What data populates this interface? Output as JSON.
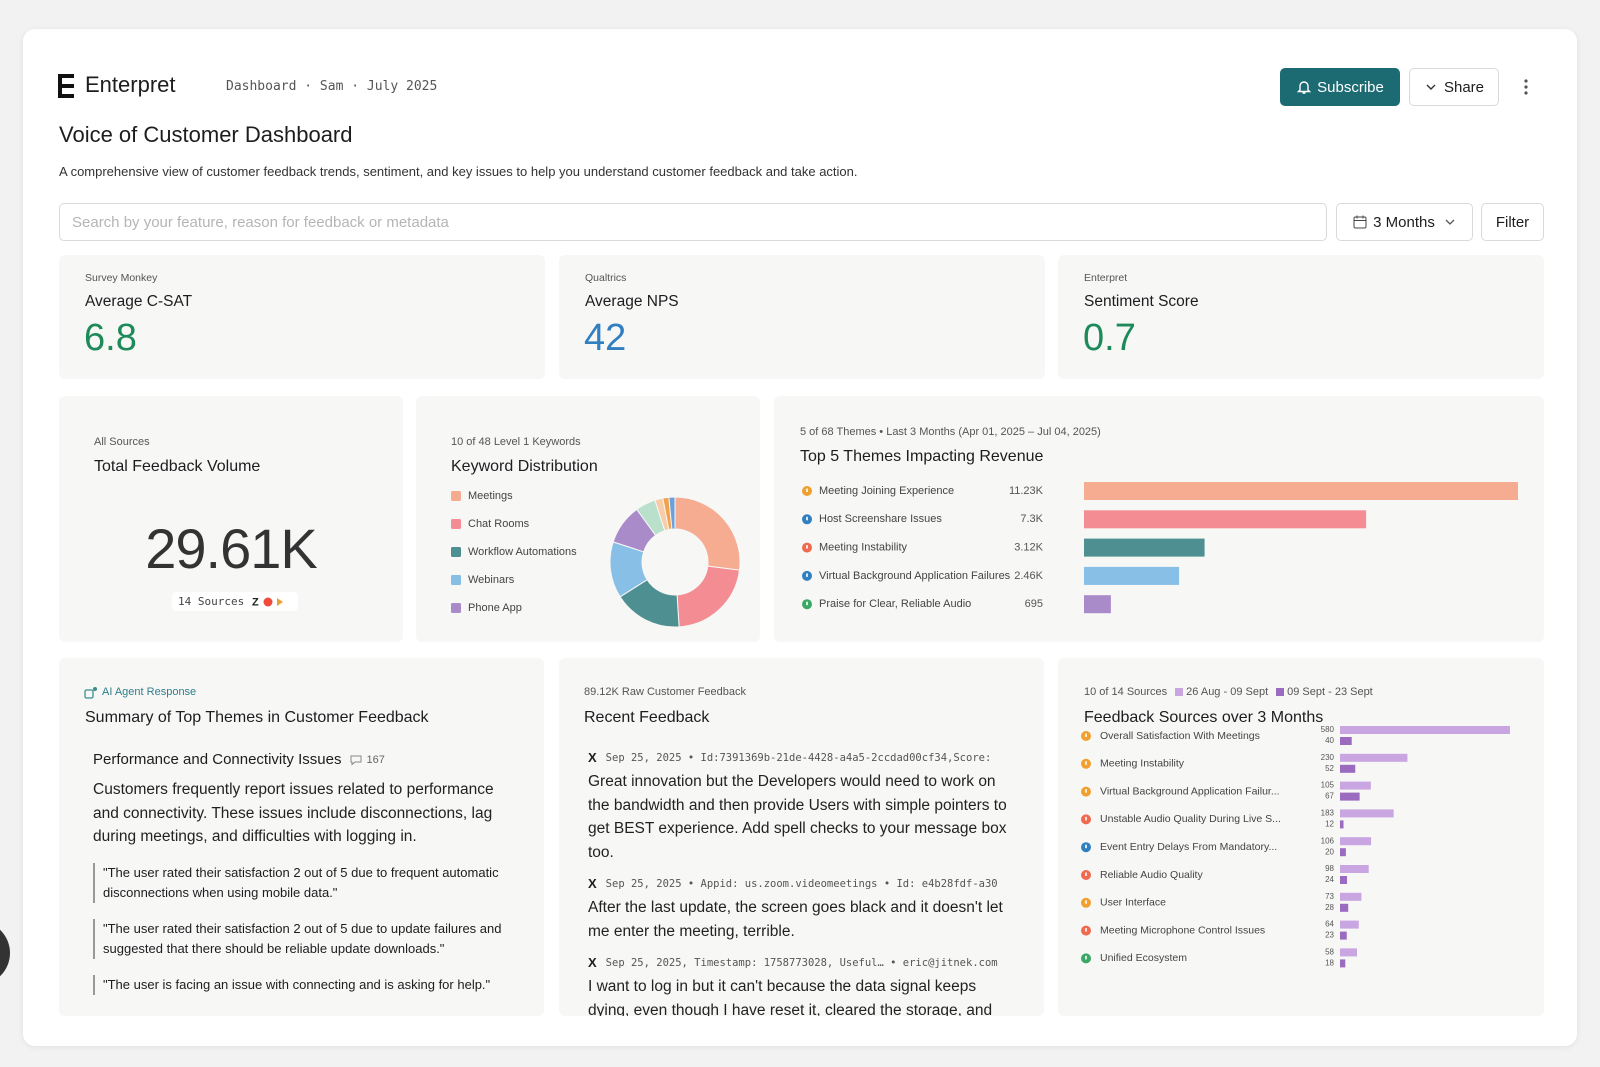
{
  "header": {
    "brand": "Enterpret",
    "breadcrumb": "Dashboard · Sam · July 2025",
    "subscribe": "Subscribe",
    "share": "Share"
  },
  "title": "Voice of Customer Dashboard",
  "description": "A comprehensive view of customer feedback trends, sentiment, and key issues to help you understand customer feedback and take action.",
  "toolbar": {
    "search_placeholder": "Search by your feature, reason for feedback or metadata",
    "date_range": "3 Months",
    "filter": "Filter"
  },
  "kpis": [
    {
      "source": "Survey Monkey",
      "label": "Average C-SAT",
      "value": "6.8",
      "color": "#1e8a5a"
    },
    {
      "source": "Qualtrics",
      "label": "Average NPS",
      "value": "42",
      "color": "#2f7fc1"
    },
    {
      "source": "Enterpret",
      "label": "Sentiment Score",
      "value": "0.7",
      "color": "#1e8a5a"
    }
  ],
  "total_volume": {
    "source": "All Sources",
    "title": "Total Feedback Volume",
    "value": "29.61K",
    "sources": "14 Sources"
  },
  "keyword_distribution": {
    "type": "pie",
    "subtitle": "10 of 48 Level 1 Keywords",
    "title": "Keyword Distribution",
    "categories": [
      "Meetings",
      "Chat Rooms",
      "Workflow Automations",
      "Webinars",
      "Phone App",
      null,
      null,
      null,
      null
    ],
    "values": [
      27,
      22,
      17,
      14,
      10,
      5,
      2,
      1.5,
      1.5
    ],
    "colors": [
      "#f6ac90",
      "#f48d93",
      "#4e8f91",
      "#88bfe7",
      "#a98bc9",
      "#b9e0cb",
      "#f8cba9",
      "#f0a24c",
      "#6ca0dc"
    ]
  },
  "top_themes": {
    "type": "bar",
    "subtitle": "5 of 68 Themes • Last 3 Months (Apr 01, 2025 – Jul 04, 2025)",
    "title": "Top 5 Themes Impacting Revenue",
    "categories": [
      "Meeting Joining Experience",
      "Host Screenshare Issues",
      "Meeting Instability",
      "Virtual Background Application Failures",
      "Praise for Clear, Reliable Audio"
    ],
    "values": [
      11230,
      7300,
      3120,
      2460,
      695
    ],
    "value_labels": [
      "11.23K",
      "7.3K",
      "3.12K",
      "2.46K",
      "695"
    ],
    "colors": [
      "#f6ac90",
      "#f48d93",
      "#4e8f91",
      "#88bfe7",
      "#a98bc9"
    ],
    "icon_colors": [
      "#f0a030",
      "#2f7fc1",
      "#ef6a4f",
      "#2f7fc1",
      "#3aa866"
    ]
  },
  "ai_summary": {
    "tag": "AI Agent Response",
    "title": "Summary of Top Themes in Customer Feedback",
    "heading": "Performance and Connectivity Issues",
    "count": "167",
    "body": "Customers frequently report issues related to performance and connectivity. These issues include disconnections, lag during meetings, and difficulties with logging in.",
    "quotes": [
      "\"The user rated their satisfaction 2 out of 5 due to frequent automatic disconnections when using mobile data.\"",
      "\"The user rated their satisfaction 2 out of 5 due to update failures and suggested that there should be reliable update downloads.\"",
      "\"The user is facing an issue with connecting and is asking for help.\""
    ]
  },
  "recent_feedback": {
    "subtitle": "89.12K Raw Customer Feedback",
    "title": "Recent Feedback",
    "entries": [
      {
        "source": "X",
        "meta": "Sep 25, 2025 • Id:7391369b-21de-4428-a4a5-2ccdad00cf34,Score:",
        "text": "Great innovation but the Developers would need to work on the bandwidth and then provide Users with simple pointers to get BEST experience. Add spell checks to your message box too."
      },
      {
        "source": "X",
        "meta": "Sep 25, 2025 • Appid: us.zoom.videomeetings • Id: e4b28fdf-a30",
        "text": "After the last update, the screen goes black and it doesn't let me enter the meeting, terrible."
      },
      {
        "source": "X",
        "meta": "Sep 25, 2025, Timestamp: 1758773028, Useful… • eric@jitnek.com",
        "text": "I want to log in but it can't because the data signal keeps dying, even though I have reset it, cleared the storage, and"
      }
    ]
  },
  "feedback_sources": {
    "type": "bar",
    "subtitle": "10 of 14 Sources",
    "title": "Feedback Sources over 3 Months",
    "categories": [
      "Overall Satisfaction With Meetings",
      "Meeting Instability",
      "Virtual Background Application Failur...",
      "Unstable Audio Quality During Live S...",
      "Event Entry Delays From Mandatory...",
      "Reliable Audio Quality",
      "User Interface",
      "Meeting Microphone Control Issues",
      "Unified Ecosystem"
    ],
    "series": [
      {
        "name": "26 Aug - 09 Sept",
        "color": "#c9a5e2",
        "values": [
          580,
          230,
          105,
          183,
          106,
          98,
          73,
          64,
          58
        ]
      },
      {
        "name": "09 Sept - 23 Sept",
        "color": "#9a6bbf",
        "values": [
          40,
          52,
          67,
          12,
          20,
          24,
          28,
          23,
          18
        ]
      }
    ],
    "icon_colors": [
      "#f0a030",
      "#f0a030",
      "#f0a030",
      "#ef6a4f",
      "#2f7fc1",
      "#ef6a4f",
      "#f0a030",
      "#ef6a4f",
      "#3aa866"
    ]
  }
}
